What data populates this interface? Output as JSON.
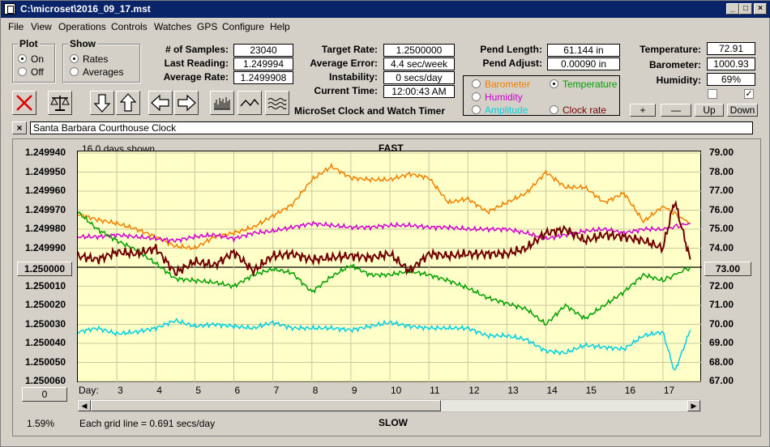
{
  "window": {
    "title": "C:\\microset\\2016_09_17.mst",
    "min": "_",
    "max": "□",
    "close": "×"
  },
  "menu": [
    "File",
    "View",
    "Operations",
    "Controls",
    "Watches",
    "GPS",
    "Configure",
    "Help"
  ],
  "plot_group": {
    "title": "Plot",
    "on": "On",
    "off": "Off"
  },
  "show_group": {
    "title": "Show",
    "rates": "Rates",
    "averages": "Averages"
  },
  "stats": {
    "samples_label": "# of Samples:",
    "samples": "23040",
    "last_label": "Last Reading:",
    "last": "1.249994",
    "avg_label": "Average Rate:",
    "avg": "1.2499908"
  },
  "target": {
    "target_label": "Target Rate:",
    "target": "1.2500000",
    "error_label": "Average Error:",
    "error": "4.4 sec/week",
    "instab_label": "Instability:",
    "instab": "0 secs/day",
    "time_label": "Current Time:",
    "time": "12:00:43 AM"
  },
  "pend": {
    "length_label": "Pend Length:",
    "length": "61.144 in",
    "adjust_label": "Pend Adjust:",
    "adjust": "0.00090 in"
  },
  "env": {
    "temp_label": "Temperature:",
    "temp": "72.91",
    "baro_label": "Barometer:",
    "baro": "1000.93",
    "hum_label": "Humidity:",
    "hum": "69%"
  },
  "app_caption": "MicroSet Clock and Watch Timer",
  "legend": {
    "barometer": "Barometer",
    "temperature": "Temperature",
    "humidity": "Humidity",
    "amplitude": "Amplitude",
    "clock_rate": "Clock rate"
  },
  "colors": {
    "barometer": "#f08000",
    "temperature": "#00a000",
    "humidity": "#d000d0",
    "amplitude": "#00d0e0",
    "clock_rate": "#700000"
  },
  "scale_buttons": {
    "plus": "+",
    "minus": "—",
    "up": "Up",
    "down": "Down"
  },
  "clock_name": "Santa Barbara Courthouse Clock",
  "close_x": "×",
  "plot": {
    "days_shown": "16.0 days shown",
    "top_caption": "FAST",
    "bottom_caption": "SLOW",
    "left_center_value": "1.250000",
    "right_center_value": "73.00",
    "left_bottom_value": "0",
    "day_label": "Day:",
    "grid_note": "Each grid line = 0.691 secs/day",
    "percent": "1.59%",
    "left_ticks": [
      "1.249940",
      "1.249950",
      "1.249960",
      "1.249970",
      "1.249980",
      "1.249990",
      "1.250010",
      "1.250020",
      "1.250030",
      "1.250040",
      "1.250050",
      "1.250060"
    ],
    "right_ticks": [
      "79.00",
      "78.00",
      "77.00",
      "76.00",
      "75.00",
      "74.00",
      "72.00",
      "71.00",
      "70.00",
      "69.00",
      "68.00",
      "67.00"
    ],
    "day_ticks": [
      "3",
      "4",
      "5",
      "6",
      "7",
      "8",
      "9",
      "10",
      "11",
      "12",
      "13",
      "14",
      "15",
      "16",
      "17"
    ]
  },
  "chart_data": {
    "type": "line",
    "x_label": "Day",
    "x_range": [
      2,
      18
    ],
    "left_axis_range": [
      1.24994,
      1.25006
    ],
    "right_axis_range": [
      67,
      79
    ],
    "series": [
      {
        "name": "Clock rate",
        "axis": "left",
        "x": [
          2,
          2.5,
          3,
          3.5,
          4,
          4.5,
          5,
          5.5,
          6,
          6.5,
          7,
          7.5,
          8,
          8.5,
          9,
          9.5,
          10,
          10.5,
          11,
          11.5,
          12,
          12.5,
          13,
          13.5,
          14,
          14.5,
          15,
          15.5,
          16,
          16.5,
          17,
          17.3,
          17.7
        ],
        "y": [
          1.249994,
          1.249996,
          1.249992,
          1.249993,
          1.24999,
          1.250003,
          1.249997,
          1.249999,
          1.249992,
          1.250002,
          1.249994,
          1.249993,
          1.249996,
          1.249995,
          1.249994,
          1.249995,
          1.249993,
          1.250002,
          1.249993,
          1.249994,
          1.249993,
          1.249993,
          1.249993,
          1.24999,
          1.249982,
          1.24998,
          1.249986,
          1.249983,
          1.249984,
          1.249986,
          1.24999,
          1.249965,
          1.249996
        ]
      },
      {
        "name": "Barometer",
        "axis": "right",
        "x": [
          2,
          2.5,
          3,
          3.5,
          4,
          4.5,
          5,
          5.5,
          6,
          6.5,
          7,
          7.5,
          8,
          8.5,
          9,
          9.5,
          10,
          10.5,
          11,
          11.5,
          12,
          12.5,
          13,
          13.5,
          14,
          14.5,
          15,
          15.5,
          16,
          16.5,
          17,
          17.7
        ],
        "y": [
          75.8,
          75.5,
          75.3,
          75.0,
          74.6,
          74.1,
          74.0,
          74.6,
          74.8,
          75.1,
          75.7,
          76.3,
          77.6,
          78.3,
          77.7,
          77.6,
          77.6,
          77.9,
          77.7,
          76.4,
          76.6,
          75.9,
          76.4,
          76.9,
          78.0,
          77.2,
          77.2,
          76.4,
          76.9,
          75.4,
          76.2,
          75.3
        ]
      },
      {
        "name": "Temperature",
        "axis": "right",
        "x": [
          2,
          2.5,
          3,
          3.5,
          4,
          4.5,
          5,
          5.5,
          6,
          6.5,
          7,
          7.5,
          8,
          8.5,
          9,
          9.5,
          10,
          10.5,
          11,
          11.5,
          12,
          12.5,
          13,
          13.5,
          14,
          14.5,
          15,
          15.5,
          16,
          16.5,
          17,
          17.7
        ],
        "y": [
          75.9,
          75.0,
          74.4,
          73.9,
          73.2,
          72.4,
          72.3,
          72.2,
          72.0,
          72.6,
          72.9,
          72.7,
          71.7,
          72.5,
          73.1,
          72.6,
          72.6,
          72.8,
          72.6,
          72.3,
          71.9,
          71.4,
          71.1,
          70.8,
          70.0,
          71.0,
          70.3,
          71.0,
          71.7,
          72.6,
          72.3,
          73.0
        ]
      },
      {
        "name": "Humidity",
        "axis": "right",
        "x": [
          2,
          2.5,
          3,
          3.5,
          4,
          4.5,
          5,
          5.5,
          6,
          6.5,
          7,
          7.5,
          8,
          8.5,
          9,
          9.5,
          10,
          10.5,
          11,
          11.5,
          12,
          12.5,
          13,
          13.5,
          14,
          14.5,
          15,
          15.5,
          16,
          16.5,
          17,
          17.7
        ],
        "y": [
          74.6,
          74.6,
          74.7,
          74.6,
          74.5,
          74.4,
          74.6,
          74.7,
          74.5,
          74.8,
          74.9,
          75.1,
          75.3,
          75.2,
          75.1,
          75.1,
          75.2,
          75.2,
          75.1,
          75.1,
          75.0,
          75.0,
          75.0,
          74.8,
          74.5,
          74.7,
          74.9,
          75.0,
          74.8,
          75.0,
          75.0,
          75.3
        ]
      },
      {
        "name": "Amplitude",
        "axis": "right",
        "x": [
          2,
          2.5,
          3,
          3.5,
          4,
          4.5,
          5,
          5.5,
          6,
          6.5,
          7,
          7.5,
          8,
          8.5,
          9,
          9.5,
          10,
          10.5,
          11,
          11.5,
          12,
          12.5,
          13,
          13.5,
          14,
          14.5,
          15,
          15.5,
          16,
          16.5,
          17,
          17.3,
          17.7
        ],
        "y": [
          69.6,
          69.8,
          69.5,
          69.6,
          69.8,
          70.2,
          69.9,
          70.0,
          69.9,
          69.8,
          70.1,
          69.8,
          69.8,
          69.8,
          69.7,
          69.9,
          70.1,
          69.9,
          69.8,
          69.8,
          69.8,
          69.4,
          69.4,
          69.2,
          68.6,
          68.5,
          68.9,
          68.8,
          68.7,
          69.4,
          69.6,
          67.5,
          69.7
        ]
      }
    ]
  }
}
